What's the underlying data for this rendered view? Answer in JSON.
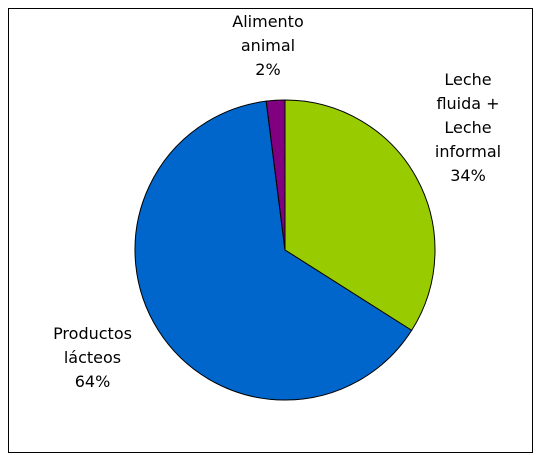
{
  "chart_data": {
    "type": "pie",
    "categories": [
      "Leche fluida + Leche informal",
      "Productos lácteos",
      "Alimento animal"
    ],
    "values": [
      34,
      64,
      2
    ],
    "value_labels": [
      "34%",
      "64%",
      "2%"
    ],
    "colors": [
      "#99cc00",
      "#0066cc",
      "#800080"
    ]
  }
}
